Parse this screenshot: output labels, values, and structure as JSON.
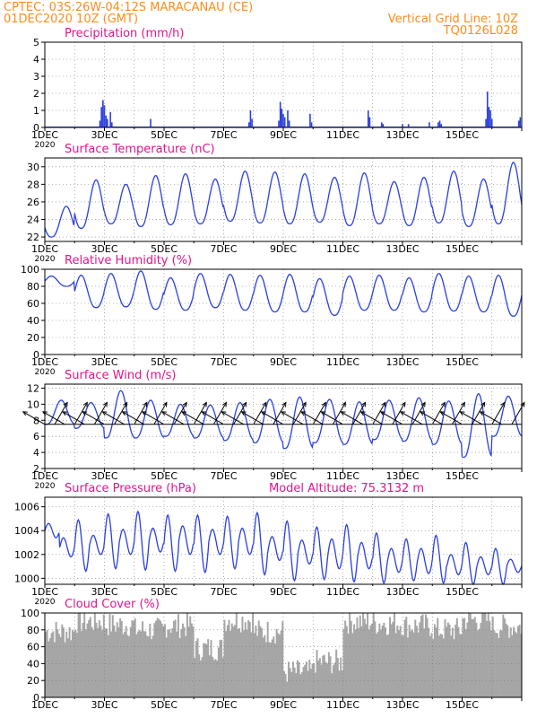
{
  "header": {
    "line1": "CPTEC:  03S:26W-04:12S   MARACANAU (CE)",
    "line2": "01DEC2020 10Z (GMT)",
    "right1": "Vertical Grid Line: 10Z",
    "right2": "TQ0126L028"
  },
  "colors": {
    "header": "#ff8c1a",
    "title": "#e0168c",
    "series": "#2a3fe0",
    "cloud": "#a6a6a6",
    "wind_arrow": "#000000",
    "grid": "#777777"
  },
  "x_tick_labels": [
    "1DEC",
    "3DEC",
    "5DEC",
    "7DEC",
    "9DEC",
    "11DEC",
    "13DEC",
    "15DEC"
  ],
  "x_first_sub": "2020",
  "chart_data": [
    {
      "id": "precipitation",
      "type": "bar",
      "title": "Precipitation  (mm/h)",
      "ylim": [
        0,
        5
      ],
      "yticks": [
        "0",
        "1",
        "2",
        "3",
        "4",
        "5"
      ],
      "grid": true,
      "x_unit": "days since 01DEC2020 00Z",
      "points": [
        [
          1.85,
          0.4
        ],
        [
          1.9,
          1.2
        ],
        [
          1.95,
          1.6
        ],
        [
          2.0,
          1.3
        ],
        [
          2.05,
          0.7
        ],
        [
          2.1,
          0.5
        ],
        [
          2.2,
          0.9
        ],
        [
          2.25,
          0.3
        ],
        [
          3.55,
          0.5
        ],
        [
          6.85,
          0.3
        ],
        [
          6.9,
          1.0
        ],
        [
          6.95,
          0.5
        ],
        [
          7.85,
          0.4
        ],
        [
          7.9,
          1.5
        ],
        [
          7.95,
          1.1
        ],
        [
          8.0,
          0.8
        ],
        [
          8.05,
          0.6
        ],
        [
          8.15,
          1.0
        ],
        [
          8.2,
          0.4
        ],
        [
          8.9,
          0.8
        ],
        [
          8.95,
          0.3
        ],
        [
          10.85,
          1.0
        ],
        [
          10.9,
          0.6
        ],
        [
          11.3,
          0.3
        ],
        [
          11.35,
          0.2
        ],
        [
          12.0,
          0.2
        ],
        [
          12.2,
          0.2
        ],
        [
          12.9,
          0.3
        ],
        [
          13.2,
          0.3
        ],
        [
          13.25,
          0.4
        ],
        [
          13.3,
          0.2
        ],
        [
          14.8,
          0.5
        ],
        [
          14.85,
          2.1
        ],
        [
          14.9,
          1.2
        ],
        [
          14.95,
          1.0
        ],
        [
          15.0,
          0.5
        ],
        [
          15.9,
          0.4
        ],
        [
          15.95,
          0.6
        ]
      ]
    },
    {
      "id": "temperature",
      "type": "line",
      "title": "Surface Temperature (nC)",
      "ylim": [
        21.5,
        31
      ],
      "yticks": [
        "22",
        "24",
        "26",
        "28",
        "30"
      ],
      "grid": true,
      "daily_min": [
        22.0,
        23.0,
        23.5,
        23.2,
        23.4,
        23.5,
        23.8,
        23.6,
        23.5,
        23.7,
        23.3,
        23.5,
        23.3,
        23.6,
        23.2,
        23.5
      ],
      "daily_max": [
        25.5,
        28.5,
        28.0,
        29.0,
        29.2,
        28.6,
        29.5,
        29.4,
        29.2,
        28.8,
        29.3,
        28.3,
        28.8,
        29.5,
        28.6,
        30.5
      ]
    },
    {
      "id": "humidity",
      "type": "line",
      "title": "Relative Humidity  (%)",
      "ylim": [
        0,
        100
      ],
      "yticks": [
        "0",
        "20",
        "40",
        "60",
        "80",
        "100"
      ],
      "grid": true,
      "daily_max": [
        92,
        93,
        95,
        98,
        90,
        95,
        94,
        93,
        94,
        89,
        92,
        93,
        90,
        95,
        92,
        93
      ],
      "daily_min": [
        80,
        55,
        56,
        53,
        52,
        55,
        52,
        50,
        50,
        46,
        52,
        52,
        50,
        51,
        50,
        45
      ]
    },
    {
      "id": "wind",
      "type": "line",
      "title": "Surface Wind  (m/s)",
      "ylim": [
        2,
        12.5
      ],
      "yticks": [
        "2",
        "4",
        "6",
        "8",
        "10",
        "12"
      ],
      "grid": true,
      "daily_max": [
        10.5,
        10.2,
        11.7,
        10.5,
        10.0,
        9.9,
        10.2,
        10.6,
        10.9,
        10.6,
        10.3,
        10.5,
        10.8,
        10.4,
        11.3,
        11.0
      ],
      "daily_min": [
        7.5,
        7.0,
        5.8,
        5.8,
        6.0,
        5.8,
        5.5,
        5.2,
        4.5,
        5.2,
        5.0,
        5.6,
        5.4,
        5.0,
        3.4,
        6.0
      ],
      "arrow_reference_speed": 7.5,
      "arrow_direction_pattern": [
        150,
        60
      ]
    },
    {
      "id": "pressure",
      "type": "line",
      "title": "Surface Pressure (hPa)",
      "annotation": "Model Altitude: 75.3132  m",
      "ylim": [
        999.5,
        1006.8
      ],
      "yticks": [
        "1000",
        "1002",
        "1004",
        "1006"
      ],
      "grid": true,
      "half_day_max": [
        1004.6,
        1003.4,
        1004.9,
        1003.6,
        1005.4,
        1004.1,
        1005.6,
        1004.2,
        1005.3,
        1004.4,
        1005.3,
        1004.1,
        1005.2,
        1004.2,
        1005.5,
        1003.5,
        1004.8,
        1003.2,
        1004.3,
        1003.3,
        1004.5,
        1003.0,
        1003.8,
        1002.5,
        1003.3,
        1002.5,
        1003.6,
        1002.0,
        1003.0,
        1001.8,
        1002.5,
        1001.6
      ],
      "half_day_min": [
        1003.4,
        1001.8,
        1000.6,
        1002.0,
        1000.8,
        1002.0,
        1000.7,
        1002.2,
        1000.6,
        1002.0,
        1000.5,
        1002.0,
        1000.8,
        1002.0,
        1000.3,
        1001.5,
        999.8,
        1001.2,
        999.9,
        1000.8,
        999.7,
        1000.8,
        999.6,
        1000.5,
        999.8,
        1000.4,
        999.6,
        1000.3,
        999.5,
        1000.3,
        999.5,
        1000.5
      ]
    },
    {
      "id": "cloud",
      "type": "area",
      "title": "Cloud  Cover  (%)",
      "ylim": [
        0,
        100
      ],
      "yticks": [
        "0",
        "20",
        "40",
        "60",
        "80",
        "100"
      ],
      "grid": true,
      "daily_level": [
        78,
        90,
        86,
        80,
        85,
        58,
        92,
        78,
        30,
        42,
        90,
        88,
        85,
        80,
        92,
        84
      ]
    }
  ]
}
